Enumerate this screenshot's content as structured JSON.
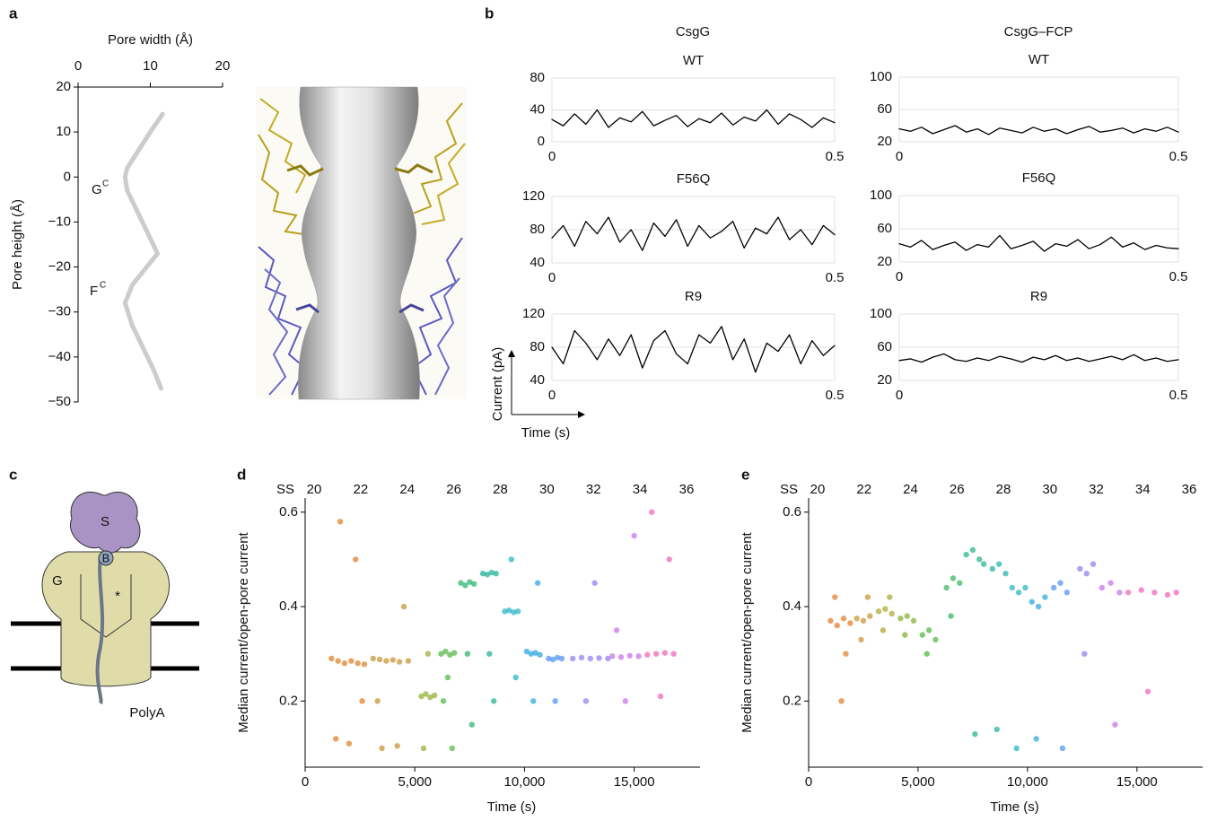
{
  "figure": {
    "panel_letters": [
      "a",
      "b",
      "c",
      "d",
      "e"
    ],
    "column_titles": [
      "CsgG",
      "CsgG–FCP"
    ],
    "trace_axes": {
      "y_label": "Current (pA)",
      "x_label": "Time (s)"
    }
  },
  "diagram": {
    "labels": {
      "s": "S",
      "g": "G",
      "b": "B",
      "star": "*",
      "polya": "PolyA"
    }
  },
  "chart_data": [
    {
      "type": "line",
      "title": "Pore width (Å)",
      "y_label": "Pore height (Å)",
      "color": "#cccccc",
      "annotations": [
        {
          "text": "G",
          "sup": "C"
        },
        {
          "text": "F",
          "sup": "C"
        }
      ],
      "x": [
        11.7,
        10,
        8,
        6.8,
        6.5,
        6.8,
        8,
        9.5,
        11,
        9.5,
        7.5,
        6.5,
        7.5,
        9,
        10.5,
        11.5
      ],
      "values": [
        14,
        10,
        5,
        2,
        0,
        -3,
        -7,
        -12,
        -17,
        -20,
        -24,
        -28,
        -33,
        -38,
        -43,
        -47
      ],
      "xlim": [
        0,
        20
      ],
      "xticks": [
        0,
        10,
        20
      ],
      "ylim": [
        -50,
        20
      ],
      "yticks": [
        {
          "value": -50,
          "label": "−50"
        },
        {
          "value": -40,
          "label": "−40"
        },
        {
          "value": -30,
          "label": "−30"
        },
        {
          "value": -20,
          "label": "−20"
        },
        {
          "value": -10,
          "label": "−10"
        },
        0,
        10,
        20
      ]
    },
    {
      "type": "line",
      "title": "WT",
      "color": "#000000",
      "grid": true,
      "x": [
        0,
        0.02,
        0.04,
        0.06,
        0.08,
        0.1,
        0.12,
        0.14,
        0.16,
        0.18,
        0.2,
        0.22,
        0.24,
        0.26,
        0.28,
        0.3,
        0.32,
        0.34,
        0.36,
        0.38,
        0.4,
        0.42,
        0.44,
        0.46,
        0.48,
        0.5
      ],
      "values": [
        28,
        20,
        35,
        22,
        40,
        18,
        30,
        25,
        38,
        20,
        27,
        33,
        19,
        29,
        24,
        36,
        21,
        31,
        26,
        40,
        22,
        35,
        28,
        18,
        30,
        24
      ],
      "xlim": [
        0,
        0.5
      ],
      "xticks": [
        0,
        0.5
      ],
      "ylim": [
        0,
        80
      ],
      "yticks": [
        0,
        40,
        80
      ]
    },
    {
      "type": "line",
      "title": "F56Q",
      "color": "#000000",
      "grid": true,
      "x": [
        0,
        0.02,
        0.04,
        0.06,
        0.08,
        0.1,
        0.12,
        0.14,
        0.16,
        0.18,
        0.2,
        0.22,
        0.24,
        0.26,
        0.28,
        0.3,
        0.32,
        0.34,
        0.36,
        0.38,
        0.4,
        0.42,
        0.44,
        0.46,
        0.48,
        0.5
      ],
      "values": [
        70,
        85,
        60,
        90,
        75,
        95,
        65,
        80,
        55,
        88,
        72,
        92,
        60,
        85,
        70,
        78,
        90,
        58,
        82,
        75,
        95,
        68,
        80,
        62,
        85,
        74
      ],
      "xlim": [
        0,
        0.5
      ],
      "xticks": [
        0,
        0.5
      ],
      "ylim": [
        40,
        120
      ],
      "yticks": [
        40,
        80,
        120
      ]
    },
    {
      "type": "line",
      "title": "R9",
      "color": "#000000",
      "grid": true,
      "x": [
        0,
        0.02,
        0.04,
        0.06,
        0.08,
        0.1,
        0.12,
        0.14,
        0.16,
        0.18,
        0.2,
        0.22,
        0.24,
        0.26,
        0.28,
        0.3,
        0.32,
        0.34,
        0.36,
        0.38,
        0.4,
        0.42,
        0.44,
        0.46,
        0.48,
        0.5
      ],
      "values": [
        80,
        60,
        100,
        85,
        65,
        90,
        70,
        95,
        55,
        88,
        100,
        72,
        60,
        95,
        85,
        105,
        65,
        90,
        50,
        85,
        75,
        95,
        60,
        88,
        70,
        82
      ],
      "xlim": [
        0,
        0.5
      ],
      "xticks": [
        0,
        0.5
      ],
      "ylim": [
        40,
        120
      ],
      "yticks": [
        40,
        80,
        120
      ]
    },
    {
      "type": "line",
      "title": "WT",
      "color": "#000000",
      "grid": true,
      "x": [
        0,
        0.02,
        0.04,
        0.06,
        0.08,
        0.1,
        0.12,
        0.14,
        0.16,
        0.18,
        0.2,
        0.22,
        0.24,
        0.26,
        0.28,
        0.3,
        0.32,
        0.34,
        0.36,
        0.38,
        0.4,
        0.42,
        0.44,
        0.46,
        0.48,
        0.5
      ],
      "values": [
        36,
        33,
        38,
        30,
        35,
        40,
        32,
        36,
        29,
        37,
        34,
        31,
        38,
        33,
        36,
        30,
        35,
        39,
        32,
        34,
        37,
        31,
        36,
        33,
        38,
        32
      ],
      "xlim": [
        0,
        0.5
      ],
      "xticks": [
        0,
        0.5
      ],
      "ylim": [
        20,
        100
      ],
      "yticks": [
        20,
        60,
        100
      ]
    },
    {
      "type": "line",
      "title": "F56Q",
      "color": "#000000",
      "grid": true,
      "x": [
        0,
        0.02,
        0.04,
        0.06,
        0.08,
        0.1,
        0.12,
        0.14,
        0.16,
        0.18,
        0.2,
        0.22,
        0.24,
        0.26,
        0.28,
        0.3,
        0.32,
        0.34,
        0.36,
        0.38,
        0.4,
        0.42,
        0.44,
        0.46,
        0.48,
        0.5
      ],
      "values": [
        42,
        38,
        46,
        35,
        40,
        44,
        34,
        41,
        38,
        52,
        36,
        40,
        45,
        33,
        42,
        39,
        47,
        36,
        41,
        50,
        38,
        43,
        35,
        40,
        37,
        36
      ],
      "xlim": [
        0,
        0.5
      ],
      "xticks": [
        0,
        0.5
      ],
      "ylim": [
        20,
        100
      ],
      "yticks": [
        20,
        60,
        100
      ]
    },
    {
      "type": "line",
      "title": "R9",
      "color": "#000000",
      "grid": true,
      "x": [
        0,
        0.02,
        0.04,
        0.06,
        0.08,
        0.1,
        0.12,
        0.14,
        0.16,
        0.18,
        0.2,
        0.22,
        0.24,
        0.26,
        0.28,
        0.3,
        0.32,
        0.34,
        0.36,
        0.38,
        0.4,
        0.42,
        0.44,
        0.46,
        0.48,
        0.5
      ],
      "values": [
        44,
        46,
        42,
        48,
        52,
        45,
        43,
        47,
        44,
        49,
        46,
        42,
        48,
        45,
        50,
        44,
        47,
        43,
        46,
        49,
        45,
        51,
        44,
        47,
        43,
        45
      ],
      "xlim": [
        0,
        0.5
      ],
      "xticks": [
        0,
        0.5
      ],
      "ylim": [
        20,
        100
      ],
      "yticks": [
        20,
        60,
        100
      ]
    },
    {
      "type": "scatter",
      "x_label": "Time (s)",
      "y_label": "Median current/open-pore current",
      "top_axis": {
        "label": "SS",
        "ticks": [
          20,
          22,
          24,
          26,
          28,
          30,
          32,
          34,
          36
        ]
      },
      "xlim": [
        0,
        18000
      ],
      "xticks": [
        0,
        {
          "value": 5000,
          "label": "5,000"
        },
        {
          "value": 10000,
          "label": "10,000"
        },
        {
          "value": 15000,
          "label": "15,000"
        }
      ],
      "ylim": [
        0.06,
        0.63
      ],
      "yticks": [
        0.2,
        0.4,
        0.6
      ],
      "series": [
        {
          "color": "#e07b1f",
          "x": [
            1200,
            1500,
            1800,
            2100,
            2400,
            2700,
            1400,
            2000,
            2600,
            1600,
            2300
          ],
          "values": [
            0.29,
            0.285,
            0.28,
            0.285,
            0.28,
            0.278,
            0.12,
            0.11,
            0.2,
            0.58,
            0.5
          ]
        },
        {
          "color": "#c6902a",
          "x": [
            3100,
            3400,
            3700,
            4000,
            4300,
            4700,
            3500,
            4200,
            3300,
            4500
          ],
          "values": [
            0.29,
            0.288,
            0.285,
            0.287,
            0.283,
            0.285,
            0.1,
            0.105,
            0.2,
            0.4
          ]
        },
        {
          "color": "#8fae28",
          "x": [
            5300,
            5500,
            5700,
            5900,
            5600,
            5400
          ],
          "values": [
            0.21,
            0.215,
            0.208,
            0.212,
            0.3,
            0.1
          ]
        },
        {
          "color": "#4bb33c",
          "x": [
            6200,
            6400,
            6600,
            6800,
            6300,
            6700,
            6500
          ],
          "values": [
            0.3,
            0.305,
            0.298,
            0.302,
            0.2,
            0.1,
            0.25
          ]
        },
        {
          "color": "#22b06a",
          "x": [
            7100,
            7300,
            7500,
            7700,
            7400,
            7600
          ],
          "values": [
            0.45,
            0.445,
            0.452,
            0.448,
            0.3,
            0.15
          ]
        },
        {
          "color": "#17ae92",
          "x": [
            8100,
            8300,
            8500,
            8700,
            8400,
            8600
          ],
          "values": [
            0.47,
            0.468,
            0.472,
            0.47,
            0.3,
            0.2
          ]
        },
        {
          "color": "#1cb2c0",
          "x": [
            9100,
            9300,
            9500,
            9700,
            9400,
            9600
          ],
          "values": [
            0.39,
            0.392,
            0.388,
            0.39,
            0.5,
            0.25
          ]
        },
        {
          "color": "#22a3e0",
          "x": [
            10100,
            10300,
            10500,
            10700,
            10400,
            10600
          ],
          "values": [
            0.305,
            0.3,
            0.302,
            0.298,
            0.2,
            0.45
          ]
        },
        {
          "color": "#4b8ef0",
          "x": [
            11100,
            11300,
            11500,
            11700,
            11400
          ],
          "values": [
            0.29,
            0.288,
            0.292,
            0.29,
            0.2
          ]
        },
        {
          "color": "#8c7bf0",
          "x": [
            12200,
            12600,
            13000,
            13400,
            13800,
            12800,
            13200
          ],
          "values": [
            0.29,
            0.292,
            0.29,
            0.291,
            0.29,
            0.2,
            0.45
          ]
        },
        {
          "color": "#c46ee6",
          "x": [
            14000,
            14400,
            14800,
            15200,
            14600,
            15000,
            14200
          ],
          "values": [
            0.295,
            0.293,
            0.296,
            0.295,
            0.2,
            0.55,
            0.35
          ]
        },
        {
          "color": "#ef60b8",
          "x": [
            15600,
            16000,
            16400,
            16800,
            16200,
            16600,
            15800
          ],
          "values": [
            0.298,
            0.3,
            0.302,
            0.3,
            0.21,
            0.5,
            0.6
          ]
        }
      ]
    },
    {
      "type": "scatter",
      "x_label": "Time (s)",
      "y_label": "Median current/open-pore current",
      "top_axis": {
        "label": "SS",
        "ticks": [
          20,
          22,
          24,
          26,
          28,
          30,
          32,
          34,
          36
        ]
      },
      "xlim": [
        0,
        18000
      ],
      "xticks": [
        0,
        {
          "value": 5000,
          "label": "5,000"
        },
        {
          "value": 10000,
          "label": "10,000"
        },
        {
          "value": 15000,
          "label": "15,000"
        }
      ],
      "ylim": [
        0.06,
        0.63
      ],
      "yticks": [
        0.2,
        0.4,
        0.6
      ],
      "series": [
        {
          "color": "#e07b1f",
          "x": [
            1000,
            1300,
            1600,
            1900,
            1200,
            1700,
            1500
          ],
          "values": [
            0.37,
            0.36,
            0.375,
            0.365,
            0.42,
            0.3,
            0.2
          ]
        },
        {
          "color": "#c6902a",
          "x": [
            2200,
            2500,
            2800,
            2400,
            2700
          ],
          "values": [
            0.375,
            0.37,
            0.38,
            0.33,
            0.42
          ]
        },
        {
          "color": "#a6a52a",
          "x": [
            3200,
            3500,
            3800,
            3400,
            3700
          ],
          "values": [
            0.39,
            0.395,
            0.385,
            0.35,
            0.42
          ]
        },
        {
          "color": "#7fae2c",
          "x": [
            4200,
            4500,
            4800,
            4400
          ],
          "values": [
            0.375,
            0.38,
            0.37,
            0.34
          ]
        },
        {
          "color": "#4bb33c",
          "x": [
            5200,
            5500,
            5800,
            5400
          ],
          "values": [
            0.34,
            0.35,
            0.33,
            0.3
          ]
        },
        {
          "color": "#2fb45a",
          "x": [
            6300,
            6600,
            6900,
            6500
          ],
          "values": [
            0.44,
            0.46,
            0.45,
            0.38
          ]
        },
        {
          "color": "#1eb088",
          "x": [
            7200,
            7500,
            7800,
            8000,
            7600
          ],
          "values": [
            0.51,
            0.52,
            0.5,
            0.49,
            0.13
          ]
        },
        {
          "color": "#1db0a6",
          "x": [
            8400,
            8700,
            9000,
            8600
          ],
          "values": [
            0.48,
            0.49,
            0.47,
            0.14
          ]
        },
        {
          "color": "#1cb2c0",
          "x": [
            9300,
            9600,
            9900,
            9500
          ],
          "values": [
            0.44,
            0.43,
            0.44,
            0.1
          ]
        },
        {
          "color": "#22a3e0",
          "x": [
            10200,
            10500,
            10800,
            10400
          ],
          "values": [
            0.41,
            0.4,
            0.42,
            0.12
          ]
        },
        {
          "color": "#4b8ef0",
          "x": [
            11200,
            11500,
            11800,
            11600
          ],
          "values": [
            0.44,
            0.45,
            0.43,
            0.1
          ]
        },
        {
          "color": "#8c7bf0",
          "x": [
            12400,
            12700,
            13000,
            12600
          ],
          "values": [
            0.48,
            0.47,
            0.49,
            0.3
          ]
        },
        {
          "color": "#c46ee6",
          "x": [
            13400,
            13800,
            14200,
            14000
          ],
          "values": [
            0.44,
            0.45,
            0.43,
            0.15
          ]
        },
        {
          "color": "#ef60b8",
          "x": [
            14600,
            15200,
            15800,
            16400,
            16800,
            15500
          ],
          "values": [
            0.43,
            0.435,
            0.43,
            0.425,
            0.43,
            0.22
          ]
        }
      ]
    }
  ]
}
